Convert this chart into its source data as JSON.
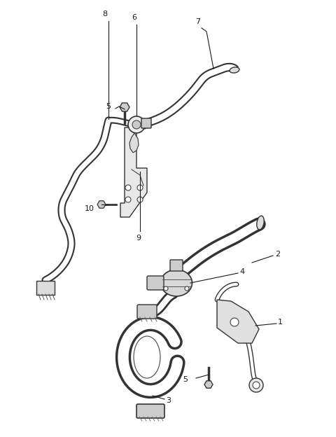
{
  "background_color": "#ffffff",
  "line_color": "#1a1a1a",
  "fig_width": 4.8,
  "fig_height": 6.24,
  "dpi": 100,
  "label_fontsize": 8,
  "thin_lw": 1.0,
  "tube_outer_lw": 6,
  "tube_inner_lw": 4
}
